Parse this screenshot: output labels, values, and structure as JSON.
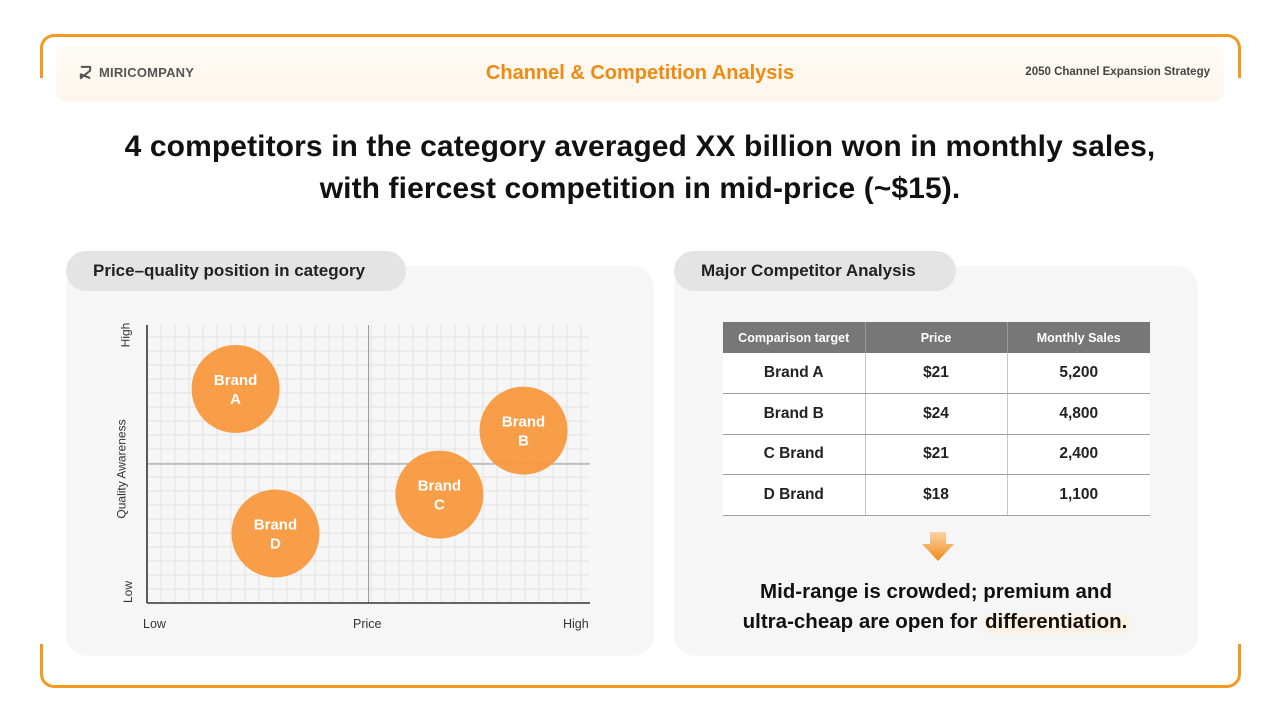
{
  "header": {
    "logo_text": "MIRICOMPANY",
    "title": "Channel & Competition Analysis",
    "right_text": "2050 Channel Expansion Strategy"
  },
  "headline": {
    "line1": "4 competitors in the category averaged XX billion won in monthly sales,",
    "line2": "with fiercest competition in mid-price (~$15)."
  },
  "left_panel": {
    "title": "Price–quality position in category"
  },
  "right_panel": {
    "title": "Major Competitor Analysis"
  },
  "chart_data": {
    "type": "scatter",
    "title": "Price–quality position in category",
    "xlabel": "Price",
    "ylabel": "Quality Awareness",
    "x_ticks": [
      "Low",
      "High"
    ],
    "y_ticks": [
      "Low",
      "High"
    ],
    "xlim": [
      0,
      10
    ],
    "ylim": [
      0,
      10
    ],
    "grid": true,
    "points": [
      {
        "label": "Brand A",
        "label_line1": "Brand",
        "label_line2": "A",
        "x": 2.0,
        "y": 7.7
      },
      {
        "label": "Brand B",
        "label_line1": "Brand",
        "label_line2": "B",
        "x": 8.5,
        "y": 6.2
      },
      {
        "label": "Brand C",
        "label_line1": "Brand",
        "label_line2": "C",
        "x": 6.6,
        "y": 3.9
      },
      {
        "label": "Brand D",
        "label_line1": "Brand",
        "label_line2": "D",
        "x": 2.9,
        "y": 2.5
      }
    ],
    "point_color": "#f7963a"
  },
  "table": {
    "headers": [
      "Comparison target",
      "Price",
      "Monthly Sales"
    ],
    "rows": [
      [
        "Brand A",
        "$21",
        "5,200"
      ],
      [
        "Brand B",
        "$24",
        "4,800"
      ],
      [
        "C Brand",
        "$21",
        "2,400"
      ],
      [
        "D Brand",
        "$18",
        "1,100"
      ]
    ]
  },
  "conclusion": {
    "line1": "Mid-range is crowded; premium and",
    "line2_plain": "ultra-cheap are open for ",
    "line2_highlight": "differentiation."
  },
  "colors": {
    "accent": "#f39a1e",
    "title": "#f08a10",
    "bubble": "#f7963a"
  }
}
